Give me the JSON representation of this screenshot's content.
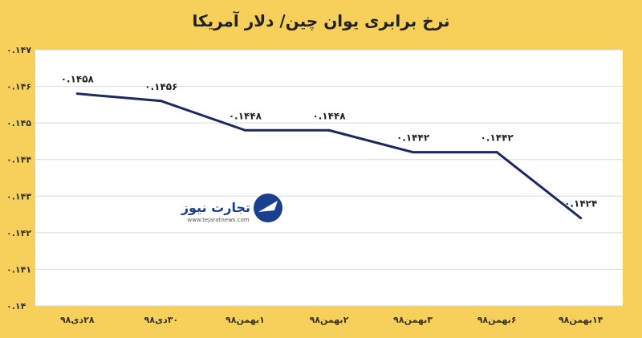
{
  "chart_data": {
    "type": "line",
    "title": "نرخ برابری یوان چین/ دلار آمریکا",
    "xlabel": "",
    "ylabel": "",
    "categories": [
      "۲۸دی۹۸",
      "۳۰دی۹۸",
      "۱بهمن۹۸",
      "۲بهمن۹۸",
      "۳بهمن۹۸",
      "۶بهمن۹۸",
      "۱۴بهمن۹۸"
    ],
    "series": [
      {
        "values": [
          0.1458,
          0.1456,
          0.1448,
          0.1448,
          0.1442,
          0.1442,
          0.1424
        ],
        "labels": [
          "۰.۱۴۵۸",
          "۰.۱۴۵۶",
          "۰.۱۴۴۸",
          "۰.۱۴۴۸",
          "۰.۱۴۴۲",
          "۰.۱۴۴۲",
          "۰.۱۴۲۴"
        ],
        "color": "#1b2a5e"
      }
    ],
    "ylim": [
      0.14,
      0.147
    ],
    "yticks": [
      0.14,
      0.141,
      0.142,
      0.143,
      0.144,
      0.145,
      0.146,
      0.147
    ],
    "ytick_labels": [
      "۰.۱۴",
      "۰.۱۴۱",
      "۰.۱۴۲",
      "۰.۱۴۳",
      "۰.۱۴۴",
      "۰.۱۴۵",
      "۰.۱۴۶",
      "۰.۱۴۷"
    ],
    "grid": true,
    "legend": "none"
  },
  "watermark": {
    "name": "تجارت نیوز",
    "url": "www.tejaratnews.com"
  },
  "colors": {
    "background": "#f6d05a",
    "plot_bg": "#ffffff",
    "line": "#1b2a5e",
    "grid": "#d9d9d9"
  }
}
